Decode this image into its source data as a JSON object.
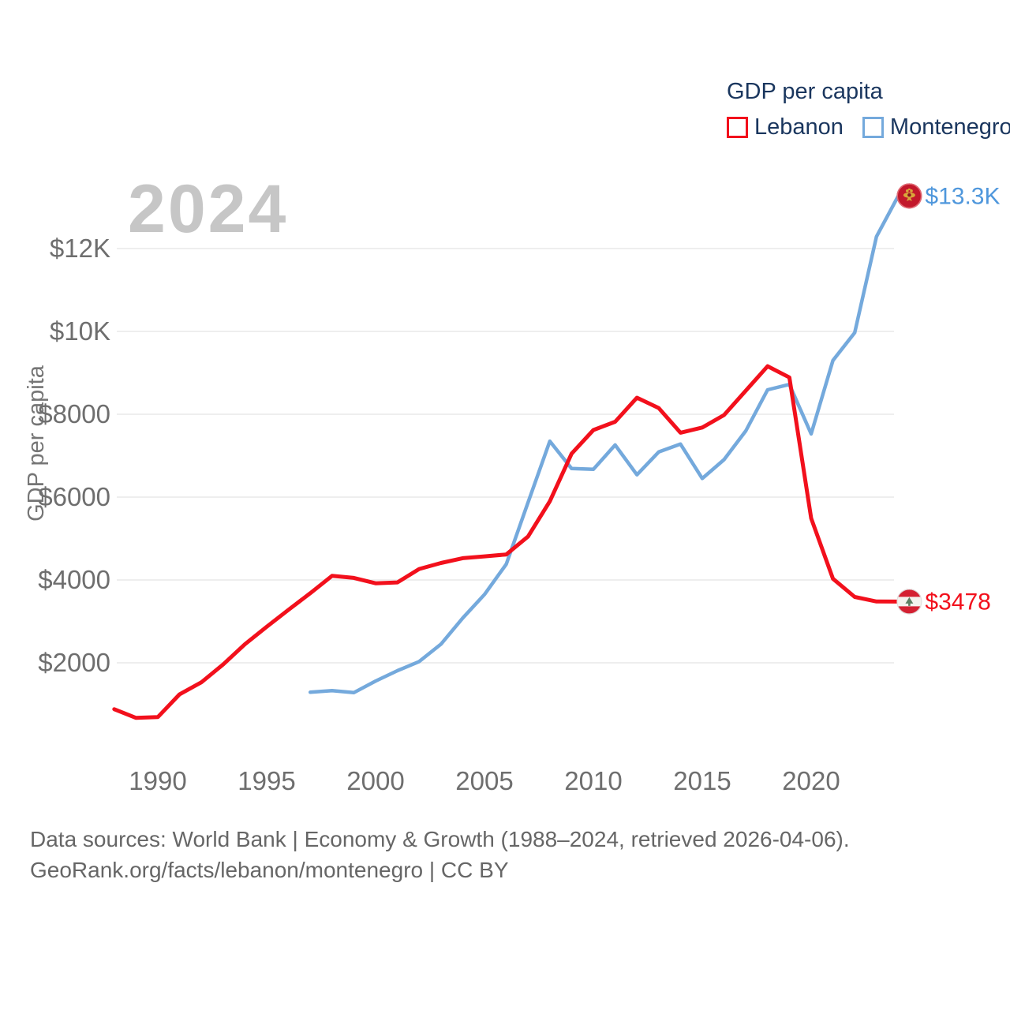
{
  "legend": {
    "title": "GDP per capita",
    "items": [
      {
        "label": "Lebanon",
        "color": "#f2101c"
      },
      {
        "label": "Montenegro",
        "color": "#74a9dc"
      }
    ]
  },
  "watermark": "2024",
  "axes": {
    "y_title": "GDP per capita",
    "y_ticks": [
      {
        "value": 2000,
        "label": "$2000"
      },
      {
        "value": 4000,
        "label": "$4000"
      },
      {
        "value": 6000,
        "label": "$6000"
      },
      {
        "value": 8000,
        "label": "$8000"
      },
      {
        "value": 10000,
        "label": "$10K"
      },
      {
        "value": 12000,
        "label": "$12K"
      }
    ],
    "x_ticks": [
      {
        "year": 1990,
        "label": "1990"
      },
      {
        "year": 1995,
        "label": "1995"
      },
      {
        "year": 2000,
        "label": "2000"
      },
      {
        "year": 2005,
        "label": "2005"
      },
      {
        "year": 2010,
        "label": "2010"
      },
      {
        "year": 2015,
        "label": "2015"
      },
      {
        "year": 2020,
        "label": "2020"
      }
    ]
  },
  "footer": {
    "line1": "Data sources: World Bank | Economy & Growth (1988–2024, retrieved 2026-04-06).",
    "line2": "GeoRank.org/facts/lebanon/montenegro | CC BY"
  },
  "chart_data": {
    "type": "line",
    "title": "GDP per capita",
    "xlabel": "",
    "ylabel": "GDP per capita",
    "x_range": [
      1988,
      2024
    ],
    "ylim": [
      0,
      13500
    ],
    "grid": "horizontal",
    "legend_position": "top-right",
    "series": [
      {
        "name": "Lebanon",
        "color": "#f2101c",
        "start_year": 1988,
        "end_label": "$3478",
        "flag": "lebanon",
        "values": [
          880,
          670,
          690,
          1240,
          1530,
          1960,
          2450,
          2870,
          3280,
          3680,
          4100,
          4050,
          3920,
          3940,
          4265,
          4410,
          4525,
          4570,
          4615,
          5050,
          5900,
          7050,
          7620,
          7820,
          8400,
          8150,
          7555,
          7680,
          7980,
          8570,
          9160,
          8890,
          5490,
          4030,
          3590,
          3480,
          3478
        ]
      },
      {
        "name": "Montenegro",
        "color": "#74a9dc",
        "start_year": 1997,
        "end_label": "$13.3K",
        "flag": "montenegro",
        "values": [
          1290,
          1330,
          1280,
          1560,
          1810,
          2030,
          2450,
          3080,
          3650,
          4380,
          5870,
          7350,
          6690,
          6670,
          7260,
          6540,
          7090,
          7280,
          6450,
          6905,
          7600,
          8590,
          8720,
          7525,
          9300,
          9970,
          12290,
          13270
        ]
      }
    ]
  }
}
